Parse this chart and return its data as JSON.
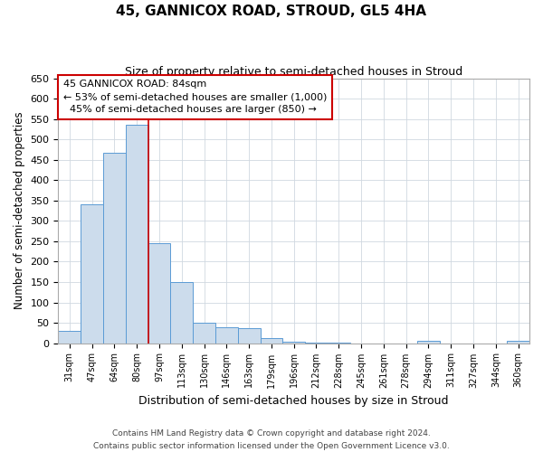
{
  "title": "45, GANNICOX ROAD, STROUD, GL5 4HA",
  "subtitle": "Size of property relative to semi-detached houses in Stroud",
  "xlabel": "Distribution of semi-detached houses by size in Stroud",
  "ylabel": "Number of semi-detached properties",
  "footer1": "Contains HM Land Registry data © Crown copyright and database right 2024.",
  "footer2": "Contains public sector information licensed under the Open Government Licence v3.0.",
  "bin_labels": [
    "31sqm",
    "47sqm",
    "64sqm",
    "80sqm",
    "97sqm",
    "113sqm",
    "130sqm",
    "146sqm",
    "163sqm",
    "179sqm",
    "196sqm",
    "212sqm",
    "228sqm",
    "245sqm",
    "261sqm",
    "278sqm",
    "294sqm",
    "311sqm",
    "327sqm",
    "344sqm",
    "360sqm"
  ],
  "bar_heights": [
    30,
    340,
    468,
    535,
    245,
    150,
    50,
    38,
    37,
    12,
    3,
    1,
    1,
    0,
    0,
    0,
    5,
    0,
    0,
    0,
    5
  ],
  "bar_color": "#ccdcec",
  "bar_edge_color": "#5b9bd5",
  "grid_color": "#d0d8e0",
  "bg_color": "#ffffff",
  "property_line_bin": 3,
  "annotation_title": "45 GANNICOX ROAD: 84sqm",
  "annotation_line1": "← 53% of semi-detached houses are smaller (1,000)",
  "annotation_line2": "  45% of semi-detached houses are larger (850) →",
  "annotation_box_color": "#ffffff",
  "annotation_box_edge": "#cc0000",
  "property_line_color": "#cc0000",
  "ylim": [
    0,
    650
  ],
  "yticks": [
    0,
    50,
    100,
    150,
    200,
    250,
    300,
    350,
    400,
    450,
    500,
    550,
    600,
    650
  ]
}
